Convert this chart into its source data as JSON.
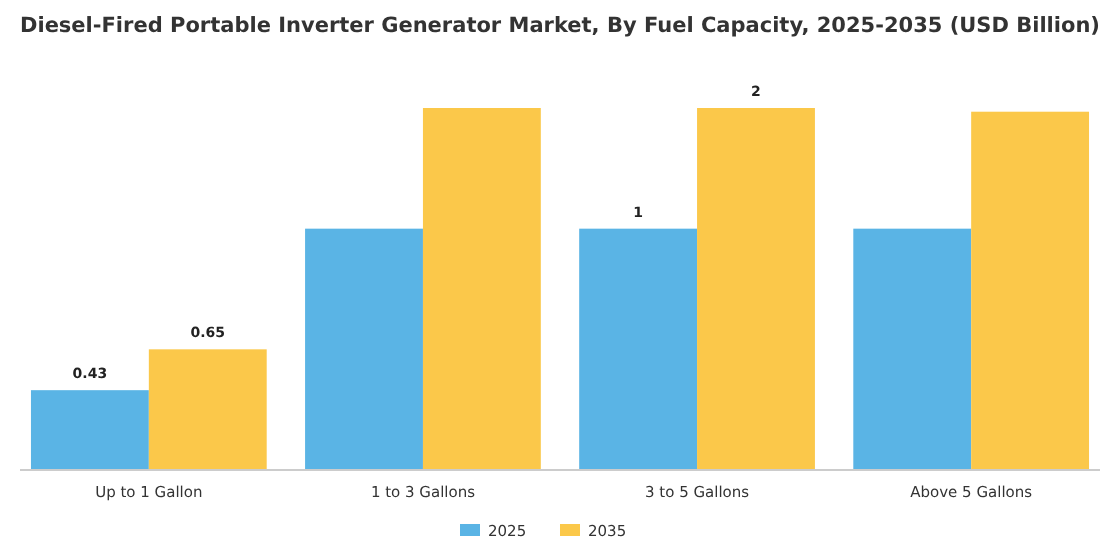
{
  "chart_data": {
    "type": "bar",
    "title": "Diesel-Fired Portable Inverter Generator Market, By Fuel Capacity, 2025-2035 (USD Billion)",
    "categories": [
      "Up to 1 Gallon",
      "1 to 3 Gallons",
      "3 to 5 Gallons",
      "Above 5 Gallons"
    ],
    "series": [
      {
        "name": "2025",
        "color": "#5ab4e5",
        "values": [
          0.43,
          1.3,
          1.3,
          1.3
        ],
        "value_labels": [
          "0.43",
          null,
          "1",
          null
        ]
      },
      {
        "name": "2035",
        "color": "#fbc84a",
        "values": [
          0.65,
          1.95,
          1.95,
          1.93
        ],
        "value_labels": [
          "0.65",
          null,
          "2",
          null
        ]
      }
    ],
    "legend": "bottom"
  }
}
